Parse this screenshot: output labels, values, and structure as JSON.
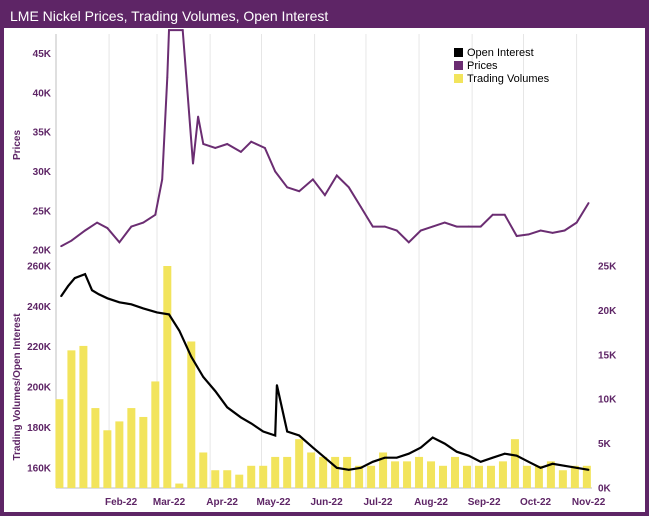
{
  "title": "LME Nickel Prices, Trading Volumes, Open Interest",
  "colors": {
    "frame": "#5e2566",
    "prices": "#6b2d72",
    "open_interest": "#000000",
    "volumes": "#f2e45c",
    "grid": "#e6e6e6"
  },
  "legend": [
    {
      "label": "Open Interest",
      "color": "#000000"
    },
    {
      "label": "Prices",
      "color": "#6b2d72"
    },
    {
      "label": "Trading Volumes",
      "color": "#f2e45c"
    }
  ],
  "chart_data": [
    {
      "type": "line",
      "ylabel": "Prices",
      "ylim": [
        19000,
        47500
      ],
      "yticks": [
        {
          "v": 20000,
          "label": "20K"
        },
        {
          "v": 25000,
          "label": "25K"
        },
        {
          "v": 30000,
          "label": "30K"
        },
        {
          "v": 35000,
          "label": "35K"
        },
        {
          "v": 40000,
          "label": "40K"
        },
        {
          "v": 45000,
          "label": "45K"
        }
      ],
      "series": [
        {
          "name": "Prices",
          "x": [
            "2022-01-04",
            "2022-01-10",
            "2022-01-18",
            "2022-01-25",
            "2022-01-31",
            "2022-02-07",
            "2022-02-14",
            "2022-02-21",
            "2022-02-28",
            "2022-03-04",
            "2022-03-07",
            "2022-03-08",
            "2022-03-16",
            "2022-03-22",
            "2022-03-25",
            "2022-03-28",
            "2022-04-04",
            "2022-04-11",
            "2022-04-19",
            "2022-04-25",
            "2022-05-03",
            "2022-05-09",
            "2022-05-16",
            "2022-05-23",
            "2022-05-31",
            "2022-06-07",
            "2022-06-14",
            "2022-06-21",
            "2022-06-28",
            "2022-07-05",
            "2022-07-12",
            "2022-07-19",
            "2022-07-26",
            "2022-08-02",
            "2022-08-09",
            "2022-08-16",
            "2022-08-23",
            "2022-08-30",
            "2022-09-06",
            "2022-09-13",
            "2022-09-20",
            "2022-09-27",
            "2022-10-04",
            "2022-10-11",
            "2022-10-18",
            "2022-10-25",
            "2022-11-01",
            "2022-11-08"
          ],
          "values": [
            20500,
            21200,
            22500,
            23500,
            22800,
            21000,
            23000,
            23500,
            24500,
            29000,
            42000,
            48000,
            48000,
            31000,
            37000,
            33500,
            33000,
            33500,
            32500,
            33800,
            33000,
            30000,
            28000,
            27500,
            29000,
            27000,
            29500,
            28000,
            25500,
            23000,
            23000,
            22500,
            21000,
            22500,
            23000,
            23500,
            23000,
            23000,
            23000,
            24500,
            24500,
            21800,
            22000,
            22500,
            22200,
            22500,
            23500,
            26000
          ]
        }
      ]
    },
    {
      "type": "line",
      "ylabel": "Trading Volumes/Open Interest",
      "ylim_left": [
        150000,
        260000
      ],
      "yticks_left": [
        {
          "v": 160000,
          "label": "160K"
        },
        {
          "v": 180000,
          "label": "180K"
        },
        {
          "v": 200000,
          "label": "200K"
        },
        {
          "v": 220000,
          "label": "220K"
        },
        {
          "v": 240000,
          "label": "240K"
        },
        {
          "v": 260000,
          "label": "260K"
        }
      ],
      "ylim_right": [
        0,
        25000
      ],
      "yticks_right": [
        {
          "v": 0,
          "label": "0K"
        },
        {
          "v": 5000,
          "label": "5K"
        },
        {
          "v": 10000,
          "label": "10K"
        },
        {
          "v": 15000,
          "label": "15K"
        },
        {
          "v": 20000,
          "label": "20K"
        },
        {
          "v": 25000,
          "label": "25K"
        }
      ],
      "xticks": [
        {
          "v": "2022-02-01",
          "label": "Feb-22"
        },
        {
          "v": "2022-03-01",
          "label": "Mar-22"
        },
        {
          "v": "2022-04-01",
          "label": "Apr-22"
        },
        {
          "v": "2022-05-01",
          "label": "May-22"
        },
        {
          "v": "2022-06-01",
          "label": "Jun-22"
        },
        {
          "v": "2022-07-01",
          "label": "Jul-22"
        },
        {
          "v": "2022-08-01",
          "label": "Aug-22"
        },
        {
          "v": "2022-09-01",
          "label": "Sep-22"
        },
        {
          "v": "2022-10-01",
          "label": "Oct-22"
        },
        {
          "v": "2022-11-01",
          "label": "Nov-22"
        }
      ],
      "xlim": [
        "2022-01-01",
        "2022-11-10"
      ],
      "series": [
        {
          "name": "Open Interest",
          "axis": "left",
          "x": [
            "2022-01-04",
            "2022-01-08",
            "2022-01-12",
            "2022-01-18",
            "2022-01-22",
            "2022-01-26",
            "2022-01-31",
            "2022-02-07",
            "2022-02-14",
            "2022-02-21",
            "2022-03-01",
            "2022-03-08",
            "2022-03-14",
            "2022-03-21",
            "2022-03-28",
            "2022-04-04",
            "2022-04-11",
            "2022-04-19",
            "2022-04-25",
            "2022-05-02",
            "2022-05-09",
            "2022-05-10",
            "2022-05-16",
            "2022-05-23",
            "2022-05-31",
            "2022-06-07",
            "2022-06-14",
            "2022-06-21",
            "2022-06-28",
            "2022-07-05",
            "2022-07-12",
            "2022-07-19",
            "2022-07-26",
            "2022-08-02",
            "2022-08-09",
            "2022-08-16",
            "2022-08-23",
            "2022-08-30",
            "2022-09-06",
            "2022-09-13",
            "2022-09-20",
            "2022-09-27",
            "2022-10-04",
            "2022-10-11",
            "2022-10-18",
            "2022-10-25",
            "2022-11-01",
            "2022-11-08"
          ],
          "values": [
            245000,
            250000,
            254000,
            256000,
            248000,
            246000,
            244000,
            242000,
            241000,
            239000,
            237000,
            236000,
            228000,
            215000,
            205000,
            198000,
            190000,
            185000,
            182000,
            178000,
            176000,
            201000,
            178000,
            176000,
            170000,
            165000,
            160000,
            159000,
            160000,
            163000,
            165000,
            165000,
            167000,
            170000,
            175000,
            172000,
            168000,
            166000,
            163000,
            165000,
            167000,
            166000,
            163000,
            160000,
            162000,
            161000,
            160000,
            159000
          ]
        },
        {
          "name": "Trading Volumes",
          "axis": "right",
          "x": [
            "2022-01-03",
            "2022-01-10",
            "2022-01-17",
            "2022-01-24",
            "2022-01-31",
            "2022-02-07",
            "2022-02-14",
            "2022-02-21",
            "2022-02-28",
            "2022-03-07",
            "2022-03-14",
            "2022-03-21",
            "2022-03-28",
            "2022-04-04",
            "2022-04-11",
            "2022-04-18",
            "2022-04-25",
            "2022-05-02",
            "2022-05-09",
            "2022-05-16",
            "2022-05-23",
            "2022-05-30",
            "2022-06-06",
            "2022-06-13",
            "2022-06-20",
            "2022-06-27",
            "2022-07-04",
            "2022-07-11",
            "2022-07-18",
            "2022-07-25",
            "2022-08-01",
            "2022-08-08",
            "2022-08-15",
            "2022-08-22",
            "2022-08-29",
            "2022-09-05",
            "2022-09-12",
            "2022-09-19",
            "2022-09-26",
            "2022-10-03",
            "2022-10-10",
            "2022-10-17",
            "2022-10-24",
            "2022-10-31",
            "2022-11-07"
          ],
          "values": [
            10000,
            15500,
            16000,
            9000,
            6500,
            7500,
            9000,
            8000,
            12000,
            25000,
            500,
            16500,
            4000,
            2000,
            2000,
            1500,
            2500,
            2500,
            3500,
            3500,
            5500,
            4000,
            3500,
            3500,
            3500,
            2500,
            2500,
            4000,
            3000,
            3000,
            3500,
            3000,
            2500,
            3500,
            2500,
            2500,
            2500,
            3000,
            5500,
            2500,
            2500,
            3000,
            2000,
            2500,
            2500
          ]
        }
      ]
    }
  ]
}
